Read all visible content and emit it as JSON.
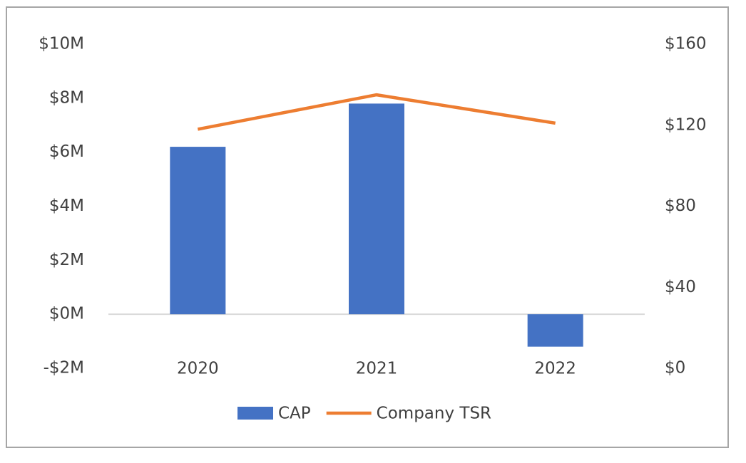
{
  "chart_data": {
    "type": "bar",
    "categories": [
      "2020",
      "2021",
      "2022"
    ],
    "series": [
      {
        "name": "CAP",
        "type": "bar",
        "color": "#4472c4",
        "axis": "y",
        "values": [
          6.2,
          7.8,
          -1.2
        ]
      },
      {
        "name": "Company TSR",
        "type": "line",
        "color": "#ed7d31",
        "axis": "y2",
        "values": [
          118,
          135,
          121
        ]
      }
    ],
    "ylim": [
      -2,
      10
    ],
    "yticks": [
      {
        "value": -2,
        "label": "-$2M"
      },
      {
        "value": 0,
        "label": "$0M"
      },
      {
        "value": 2,
        "label": "$2M"
      },
      {
        "value": 4,
        "label": "$4M"
      },
      {
        "value": 6,
        "label": "$6M"
      },
      {
        "value": 8,
        "label": "$8M"
      },
      {
        "value": 10,
        "label": "$10M"
      }
    ],
    "y2lim": [
      0,
      160
    ],
    "y2ticks": [
      {
        "value": 0,
        "label": "$0"
      },
      {
        "value": 40,
        "label": "$40"
      },
      {
        "value": 80,
        "label": "$80"
      },
      {
        "value": 120,
        "label": "$120"
      },
      {
        "value": 160,
        "label": "$160"
      }
    ],
    "grid": false,
    "legend": "bottom"
  }
}
